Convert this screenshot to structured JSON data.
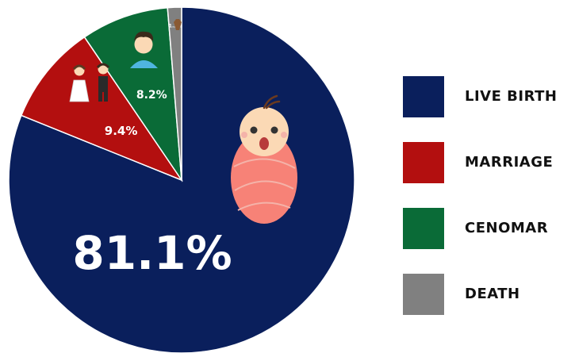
{
  "chart_data": {
    "type": "pie",
    "title": "",
    "categories": [
      "LIVE BIRTH",
      "MARRIAGE",
      "CENOMAR",
      "DEATH"
    ],
    "values": [
      81.1,
      9.4,
      8.2,
      1.3
    ],
    "data_labels": [
      "81.1%",
      "9.4%",
      "8.2%",
      "1.3%"
    ],
    "colors": [
      "#0a1f5c",
      "#b30f0f",
      "#0a6b37",
      "#808080"
    ],
    "legend_position": "right",
    "slice_icons": [
      "baby-icon",
      "wedding-couple-icon",
      "man-icon",
      "coffin-icon"
    ]
  }
}
